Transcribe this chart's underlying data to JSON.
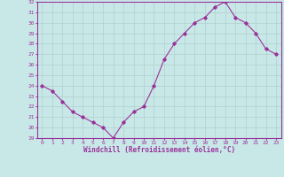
{
  "x": [
    0,
    1,
    2,
    3,
    4,
    5,
    6,
    7,
    8,
    9,
    10,
    11,
    12,
    13,
    14,
    15,
    16,
    17,
    18,
    19,
    20,
    21,
    22,
    23
  ],
  "y": [
    24.0,
    23.5,
    22.5,
    21.5,
    21.0,
    20.5,
    20.0,
    19.0,
    20.5,
    21.5,
    22.0,
    24.0,
    26.5,
    28.0,
    29.0,
    30.0,
    30.5,
    31.5,
    32.0,
    30.5,
    30.0,
    29.0,
    27.5,
    27.0
  ],
  "ylim": [
    19,
    32
  ],
  "yticks": [
    19,
    20,
    21,
    22,
    23,
    24,
    25,
    26,
    27,
    28,
    29,
    30,
    31,
    32
  ],
  "xticks": [
    0,
    1,
    2,
    3,
    4,
    5,
    6,
    7,
    8,
    9,
    10,
    11,
    12,
    13,
    14,
    15,
    16,
    17,
    18,
    19,
    20,
    21,
    22,
    23
  ],
  "xlabel": "Windchill (Refroidissement éolien,°C)",
  "line_color": "#993399",
  "marker": "D",
  "marker_size": 1.8,
  "bg_color": "#c8e8e8",
  "grid_color": "#b0d0d0",
  "tick_label_color": "#993399",
  "xlabel_color": "#993399",
  "spine_color": "#993399"
}
